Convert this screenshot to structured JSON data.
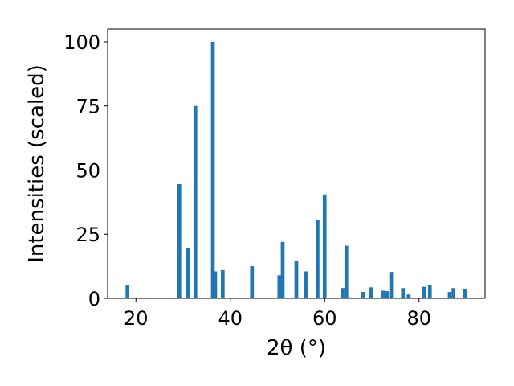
{
  "chart_data": {
    "type": "bar",
    "xlabel": "2θ (°)",
    "ylabel": "Intensities (scaled)",
    "xlim": [
      14,
      94
    ],
    "ylim": [
      0,
      105
    ],
    "xticks": [
      20,
      40,
      60,
      80
    ],
    "yticks": [
      0,
      25,
      50,
      75,
      100
    ],
    "grid": false,
    "bar_color": "#1f77b4",
    "x": [
      18.2,
      29.2,
      31.0,
      32.6,
      36.3,
      36.8,
      38.4,
      44.6,
      48.6,
      50.4,
      51.1,
      54.0,
      56.1,
      58.5,
      60.0,
      63.8,
      64.6,
      65.2,
      68.2,
      69.8,
      72.4,
      73.2,
      74.1,
      76.6,
      77.8,
      78.6,
      81.0,
      82.3,
      85.3,
      86.5,
      87.3,
      89.8
    ],
    "values": [
      5,
      44.5,
      19.5,
      75,
      100,
      10.5,
      11,
      12.5,
      0.3,
      9,
      22,
      14.5,
      10.5,
      30.5,
      40.5,
      4,
      20.5,
      0.4,
      2.5,
      4.3,
      3,
      2.8,
      10.3,
      4,
      1.5,
      0.3,
      4.5,
      5,
      0.3,
      2.5,
      4,
      3.5
    ]
  }
}
